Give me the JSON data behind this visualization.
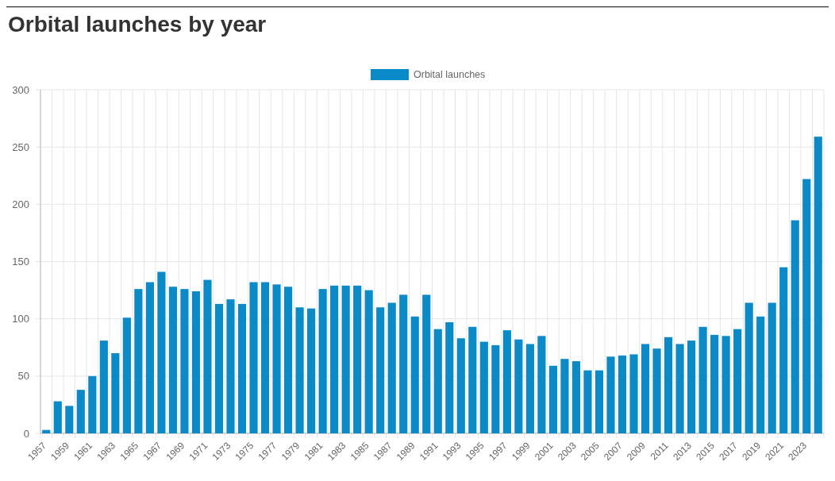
{
  "chart_data": {
    "type": "bar",
    "title": "Orbital launches by year",
    "categories": [
      "1957",
      null,
      "1959",
      null,
      "1961",
      null,
      "1963",
      null,
      "1965",
      null,
      "1967",
      null,
      "1969",
      null,
      "1971",
      null,
      "1973",
      null,
      "1975",
      null,
      "1977",
      null,
      "1979",
      null,
      "1981",
      null,
      "1983",
      null,
      "1985",
      null,
      "1987",
      null,
      "1989",
      null,
      "1991",
      null,
      "1993",
      null,
      "1995",
      null,
      "1997",
      null,
      "1999",
      null,
      "2001",
      null,
      "2003",
      null,
      "2005",
      null,
      "2007",
      null,
      "2009",
      null,
      "2011",
      null,
      "2013",
      null,
      "2015",
      null,
      "2017",
      null,
      "2019",
      null,
      "2021",
      null,
      "2023",
      null
    ],
    "series": [
      {
        "name": "Orbital launches",
        "color": "#0a8ac6",
        "values": [
          3,
          28,
          24,
          38,
          50,
          81,
          70,
          101,
          126,
          132,
          141,
          128,
          126,
          124,
          134,
          113,
          117,
          113,
          132,
          132,
          130,
          128,
          110,
          109,
          126,
          129,
          129,
          129,
          125,
          110,
          114,
          121,
          102,
          121,
          91,
          97,
          83,
          93,
          80,
          77,
          90,
          82,
          78,
          85,
          59,
          65,
          63,
          55,
          55,
          67,
          68,
          69,
          78,
          74,
          84,
          78,
          81,
          93,
          86,
          85,
          91,
          114,
          102,
          114,
          145,
          186,
          222,
          259
        ]
      }
    ],
    "ylim": [
      0,
      300
    ],
    "yticks": [
      0,
      50,
      100,
      150,
      200,
      250,
      300
    ],
    "grid": true,
    "legend": "top"
  }
}
